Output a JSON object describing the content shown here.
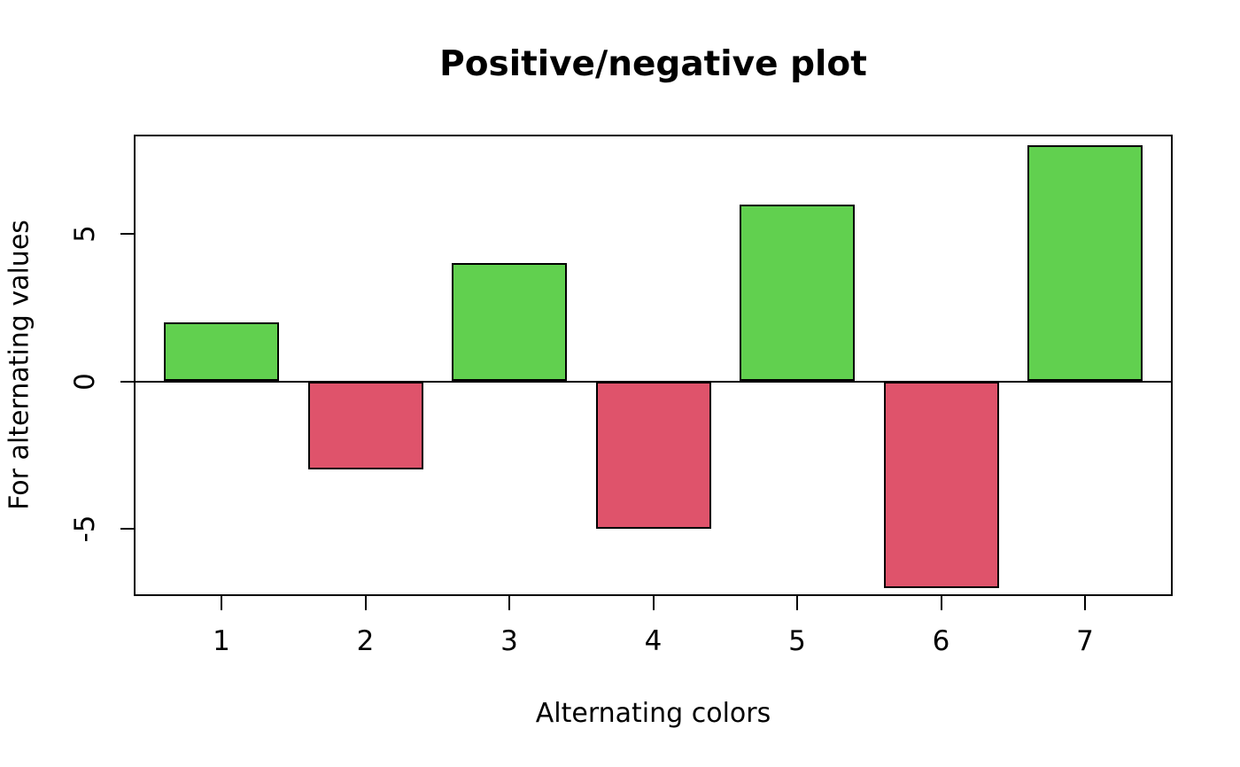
{
  "title": "Positive/negative plot",
  "axes": {
    "x_label": "Alternating colors",
    "y_label": "For alternating values"
  },
  "chart_data": {
    "type": "bar",
    "title": "Positive/negative plot",
    "xlabel": "Alternating colors",
    "ylabel": "For alternating values",
    "categories": [
      "1",
      "2",
      "3",
      "4",
      "5",
      "6",
      "7"
    ],
    "values": [
      2,
      -3,
      4,
      -5,
      6,
      -7,
      8
    ],
    "y_ticks": [
      5,
      0,
      -5
    ],
    "y_tick_labels": [
      "5",
      "0",
      "-5"
    ],
    "ylim": [
      -7.3,
      8.35
    ],
    "grid": false,
    "legend": "none",
    "bar_colors_by_sign": {
      "positive": "#61D04F",
      "negative": "#DF536B"
    },
    "bar_border_color": "#000000",
    "axis_color": "#000000",
    "background_color": "#FFFFFF"
  }
}
